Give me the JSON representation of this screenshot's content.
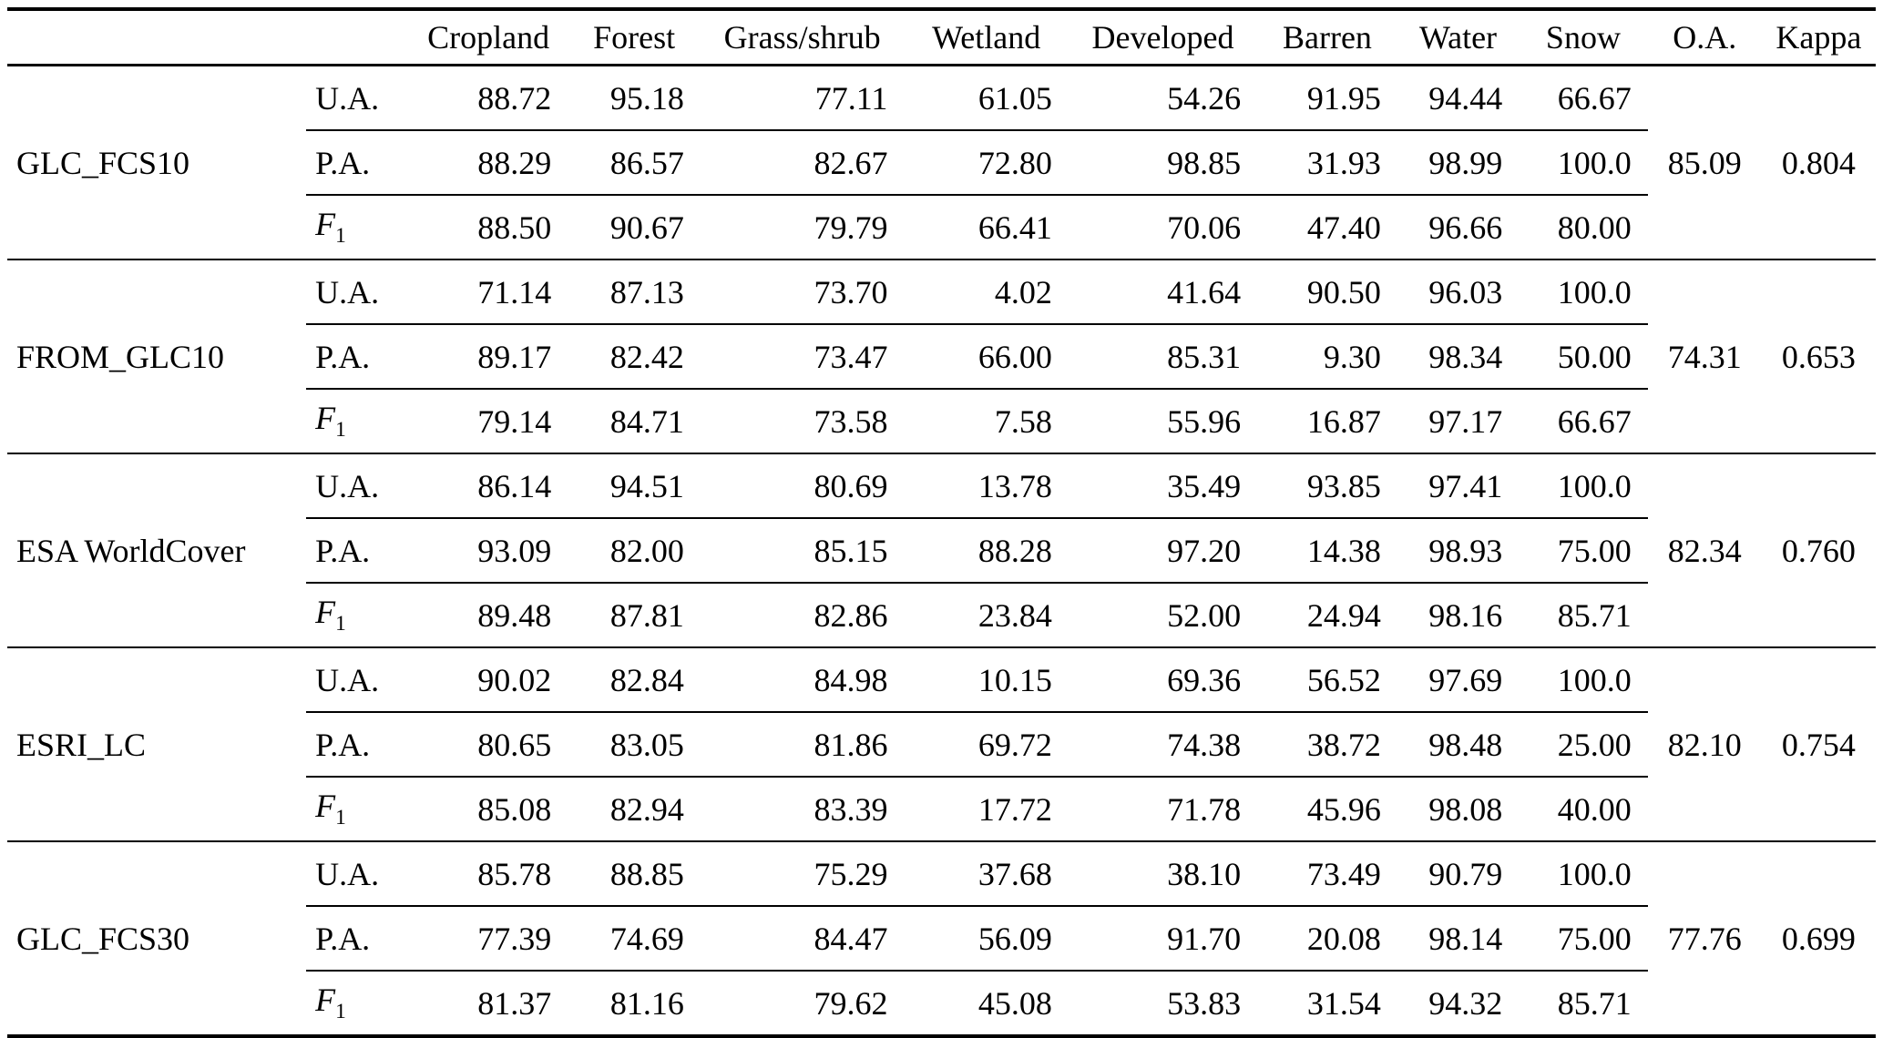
{
  "page": {
    "background_color": "#ffffff",
    "text_color": "#000000",
    "line_color": "#000000"
  },
  "table": {
    "blank_product_header": "",
    "blank_metric_header": "",
    "class_headers": [
      "Cropland",
      "Forest",
      "Grass/shrub",
      "Wetland",
      "Developed",
      "Barren",
      "Water",
      "Snow"
    ],
    "summary_headers": [
      "O.A.",
      "Kappa"
    ],
    "metric_labels": [
      "U.A.",
      "P.A.",
      "F1"
    ],
    "groups": [
      {
        "product": "GLC_FCS10",
        "rows": [
          {
            "metric": "U.A.",
            "values": [
              "88.72",
              "95.18",
              "77.11",
              "61.05",
              "54.26",
              "91.95",
              "94.44",
              "66.67"
            ]
          },
          {
            "metric": "P.A.",
            "values": [
              "88.29",
              "86.57",
              "82.67",
              "72.80",
              "98.85",
              "31.93",
              "98.99",
              "100.0"
            ]
          },
          {
            "metric": "F1",
            "values": [
              "88.50",
              "90.67",
              "79.79",
              "66.41",
              "70.06",
              "47.40",
              "96.66",
              "80.00"
            ]
          }
        ],
        "oa": "85.09",
        "kappa": "0.804"
      },
      {
        "product": "FROM_GLC10",
        "rows": [
          {
            "metric": "U.A.",
            "values": [
              "71.14",
              "87.13",
              "73.70",
              "4.02",
              "41.64",
              "90.50",
              "96.03",
              "100.0"
            ]
          },
          {
            "metric": "P.A.",
            "values": [
              "89.17",
              "82.42",
              "73.47",
              "66.00",
              "85.31",
              "9.30",
              "98.34",
              "50.00"
            ]
          },
          {
            "metric": "F1",
            "values": [
              "79.14",
              "84.71",
              "73.58",
              "7.58",
              "55.96",
              "16.87",
              "97.17",
              "66.67"
            ]
          }
        ],
        "oa": "74.31",
        "kappa": "0.653"
      },
      {
        "product": "ESA WorldCover",
        "rows": [
          {
            "metric": "U.A.",
            "values": [
              "86.14",
              "94.51",
              "80.69",
              "13.78",
              "35.49",
              "93.85",
              "97.41",
              "100.0"
            ]
          },
          {
            "metric": "P.A.",
            "values": [
              "93.09",
              "82.00",
              "85.15",
              "88.28",
              "97.20",
              "14.38",
              "98.93",
              "75.00"
            ]
          },
          {
            "metric": "F1",
            "values": [
              "89.48",
              "87.81",
              "82.86",
              "23.84",
              "52.00",
              "24.94",
              "98.16",
              "85.71"
            ]
          }
        ],
        "oa": "82.34",
        "kappa": "0.760"
      },
      {
        "product": "ESRI_LC",
        "rows": [
          {
            "metric": "U.A.",
            "values": [
              "90.02",
              "82.84",
              "84.98",
              "10.15",
              "69.36",
              "56.52",
              "97.69",
              "100.0"
            ]
          },
          {
            "metric": "P.A.",
            "values": [
              "80.65",
              "83.05",
              "81.86",
              "69.72",
              "74.38",
              "38.72",
              "98.48",
              "25.00"
            ]
          },
          {
            "metric": "F1",
            "values": [
              "85.08",
              "82.94",
              "83.39",
              "17.72",
              "71.78",
              "45.96",
              "98.08",
              "40.00"
            ]
          }
        ],
        "oa": "82.10",
        "kappa": "0.754"
      },
      {
        "product": "GLC_FCS30",
        "rows": [
          {
            "metric": "U.A.",
            "values": [
              "85.78",
              "88.85",
              "75.29",
              "37.68",
              "38.10",
              "73.49",
              "90.79",
              "100.0"
            ]
          },
          {
            "metric": "P.A.",
            "values": [
              "77.39",
              "74.69",
              "84.47",
              "56.09",
              "91.70",
              "20.08",
              "98.14",
              "75.00"
            ]
          },
          {
            "metric": "F1",
            "values": [
              "81.37",
              "81.16",
              "79.62",
              "45.08",
              "53.83",
              "31.54",
              "94.32",
              "85.71"
            ]
          }
        ],
        "oa": "77.76",
        "kappa": "0.699"
      }
    ]
  }
}
